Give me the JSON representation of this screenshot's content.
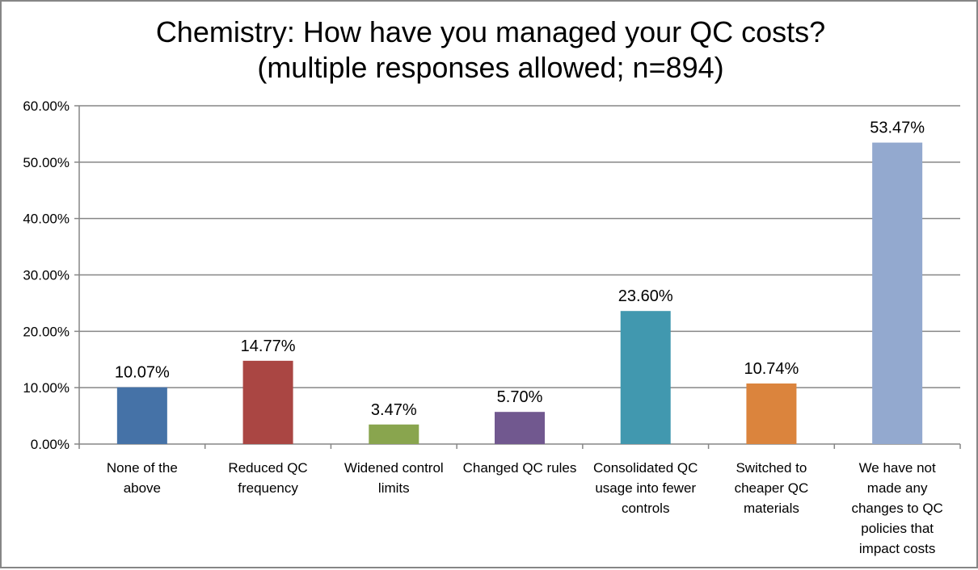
{
  "chart_data": {
    "type": "bar",
    "title_line1": "Chemistry: How have you managed your QC costs?",
    "title_line2": "(multiple responses allowed; n=894)",
    "categories": [
      [
        "None of the",
        "above"
      ],
      [
        "Reduced QC",
        "frequency"
      ],
      [
        "Widened control",
        "limits"
      ],
      [
        "Changed QC rules"
      ],
      [
        "Consolidated QC",
        "usage into fewer",
        "controls"
      ],
      [
        "Switched to",
        "cheaper QC",
        "materials"
      ],
      [
        "We have not",
        "made any",
        "changes to QC",
        "policies that",
        "impact costs"
      ]
    ],
    "values": [
      10.07,
      14.77,
      3.47,
      5.7,
      23.6,
      10.74,
      53.47
    ],
    "data_labels": [
      "10.07%",
      "14.77%",
      "3.47%",
      "5.70%",
      "23.60%",
      "10.74%",
      "53.47%"
    ],
    "colors": [
      "#4572A7",
      "#AA4643",
      "#89A54E",
      "#71588F",
      "#4198AF",
      "#DB843D",
      "#93A9CF"
    ],
    "yticks": [
      "0.00%",
      "10.00%",
      "20.00%",
      "30.00%",
      "40.00%",
      "50.00%",
      "60.00%"
    ],
    "ylim": [
      0,
      60
    ],
    "xlabel": "",
    "ylabel": "",
    "grid": true,
    "legend": "none"
  }
}
